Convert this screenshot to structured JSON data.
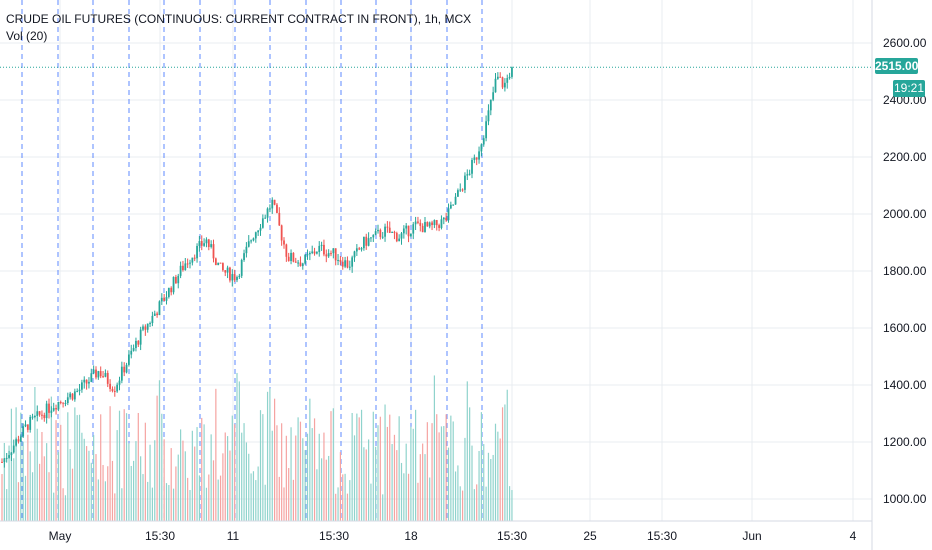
{
  "legend": {
    "symbol": "CRUDE OIL FUTURES (CONTINUOUS: CURRENT CONTRACT IN FRONT), 1h, MCX",
    "indicator": "Vol (20)"
  },
  "price_tag": "2515.00",
  "timer_tag": "19:21",
  "colors": {
    "up": "#26a69a",
    "down": "#ef5350",
    "vol_up": "#8fd3cc",
    "vol_down": "#f5a3a1",
    "session_line": "#2962ff",
    "grid": "#e9ecf1",
    "price_line": "#26a69a"
  },
  "chart_data": {
    "type": "candlestick",
    "title": "CRUDE OIL FUTURES (CONTINUOUS: CURRENT CONTRACT IN FRONT), 1h, MCX",
    "ylim": [
      950,
      2720
    ],
    "y_ticks": [
      "2600.00",
      "2400.00",
      "2200.00",
      "2000.00",
      "1800.00",
      "1600.00",
      "1400.00",
      "1200.00",
      "1000.00"
    ],
    "x_ticks": [
      "May",
      "15:30",
      "11",
      "15:30",
      "18",
      "15:30",
      "25",
      "15:30",
      "Jun",
      "4"
    ],
    "last_price": 2515.0,
    "close_anchors": [
      [
        0,
        1130
      ],
      [
        0.05,
        1260
      ],
      [
        0.1,
        1330
      ],
      [
        0.15,
        1380
      ],
      [
        0.19,
        1450
      ],
      [
        0.22,
        1390
      ],
      [
        0.27,
        1570
      ],
      [
        0.31,
        1680
      ],
      [
        0.36,
        1830
      ],
      [
        0.4,
        1910
      ],
      [
        0.43,
        1800
      ],
      [
        0.46,
        1780
      ],
      [
        0.49,
        1920
      ],
      [
        0.53,
        2040
      ],
      [
        0.56,
        1850
      ],
      [
        0.59,
        1830
      ],
      [
        0.62,
        1880
      ],
      [
        0.65,
        1860
      ],
      [
        0.68,
        1820
      ],
      [
        0.71,
        1900
      ],
      [
        0.75,
        1940
      ],
      [
        0.78,
        1920
      ],
      [
        0.81,
        1960
      ],
      [
        0.84,
        1950
      ],
      [
        0.87,
        1980
      ],
      [
        0.9,
        2090
      ],
      [
        0.93,
        2200
      ],
      [
        0.95,
        2320
      ],
      [
        0.97,
        2480
      ],
      [
        0.985,
        2450
      ],
      [
        1.0,
        2515
      ]
    ],
    "candles_left": [
      [
        1120,
        1180
      ],
      [
        1180,
        1110
      ],
      [
        1110,
        1200
      ],
      [
        1200,
        1260
      ],
      [
        1260,
        1230
      ],
      [
        1230,
        1290
      ],
      [
        1290,
        1310
      ],
      [
        1310,
        1280
      ],
      [
        1280,
        1340
      ],
      [
        1340,
        1320
      ],
      [
        1320,
        1360
      ],
      [
        1360,
        1340
      ],
      [
        1340,
        1370
      ],
      [
        1370,
        1390
      ],
      [
        1390,
        1350
      ],
      [
        1350,
        1380
      ],
      [
        1380,
        1420
      ],
      [
        1420,
        1380
      ],
      [
        1380,
        1320
      ],
      [
        1320,
        1400
      ],
      [
        1400,
        1480
      ],
      [
        1480,
        1430
      ],
      [
        1430,
        1390
      ],
      [
        1390,
        1400
      ]
    ],
    "volume_scale": 480
  }
}
